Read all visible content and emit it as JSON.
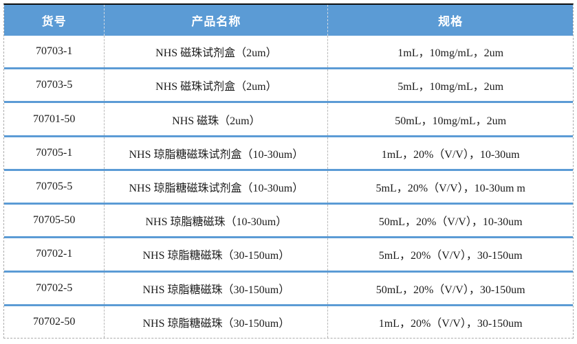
{
  "table": {
    "headers": {
      "sku": "货号",
      "name": "产品名称",
      "spec": "规格"
    },
    "rows": [
      {
        "sku": "70703-1",
        "name": "NHS 磁珠试剂盒（2um）",
        "spec": "1mL，10mg/mL，2um"
      },
      {
        "sku": "70703-5",
        "name": "NHS 磁珠试剂盒（2um）",
        "spec": "5mL，10mg/mL，2um"
      },
      {
        "sku": "70701-50",
        "name": "NHS 磁珠（2um）",
        "spec": "50mL，10mg/mL，2um"
      },
      {
        "sku": "70705-1",
        "name": "NHS 琼脂糖磁珠试剂盒（10-30um）",
        "spec": "1mL，20%（V/V），10-30um"
      },
      {
        "sku": "70705-5",
        "name": "NHS 琼脂糖磁珠试剂盒（10-30um）",
        "spec": "5mL，20%（V/V），10-30um m"
      },
      {
        "sku": "70705-50",
        "name": "NHS 琼脂糖磁珠（10-30um）",
        "spec": "50mL，20%（V/V），10-30um"
      },
      {
        "sku": "70702-1",
        "name": "NHS 琼脂糖磁珠（30-150um）",
        "spec": "5mL，20%（V/V），30-150um"
      },
      {
        "sku": "70702-5",
        "name": "NHS 琼脂糖磁珠（30-150um）",
        "spec": "50mL，20%（V/V），30-150um"
      },
      {
        "sku": "70702-50",
        "name": "NHS 琼脂糖磁珠（30-150um）",
        "spec": "1mL，20%（V/V），30-150um"
      }
    ]
  },
  "colors": {
    "header_background": "#5b9bd5",
    "row_separator": "#5b9bd5",
    "dashed_border": "#ababab",
    "top_border": "#0d0d0d",
    "header_text": "#ffffff",
    "body_text": "#1a1a1a"
  }
}
